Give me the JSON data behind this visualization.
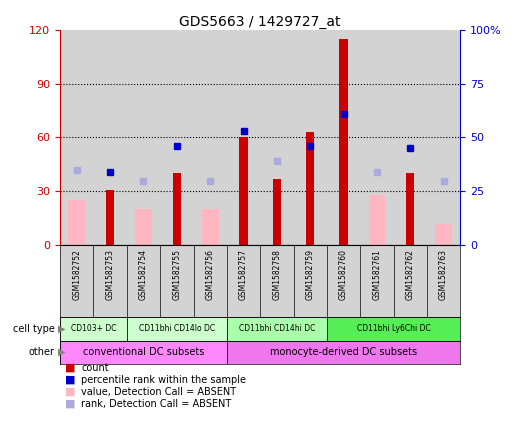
{
  "title": "GDS5663 / 1429727_at",
  "samples": [
    "GSM1582752",
    "GSM1582753",
    "GSM1582754",
    "GSM1582755",
    "GSM1582756",
    "GSM1582757",
    "GSM1582758",
    "GSM1582759",
    "GSM1582760",
    "GSM1582761",
    "GSM1582762",
    "GSM1582763"
  ],
  "count_values": [
    null,
    31,
    null,
    40,
    null,
    60,
    37,
    63,
    115,
    null,
    40,
    null
  ],
  "count_absent": [
    25,
    null,
    20,
    null,
    20,
    null,
    null,
    null,
    null,
    28,
    null,
    12
  ],
  "rank_values": [
    null,
    34,
    null,
    46,
    null,
    53,
    null,
    46,
    61,
    null,
    45,
    null
  ],
  "rank_absent": [
    35,
    null,
    30,
    null,
    30,
    null,
    39,
    null,
    null,
    34,
    null,
    30
  ],
  "ylim_left": [
    0,
    120
  ],
  "ylim_right": [
    0,
    100
  ],
  "yticks_left": [
    0,
    30,
    60,
    90,
    120
  ],
  "ytick_labels_left": [
    "0",
    "30",
    "60",
    "90",
    "120"
  ],
  "yticks_right": [
    0,
    25,
    50,
    75,
    100
  ],
  "ytick_labels_right": [
    "0",
    "25",
    "50",
    "75",
    "100%"
  ],
  "cell_type_groups": [
    {
      "label": "CD103+ DC",
      "start": 0,
      "end": 1,
      "color": "#CCFFCC"
    },
    {
      "label": "CD11bhi CD14lo DC",
      "start": 2,
      "end": 4,
      "color": "#CCFFCC"
    },
    {
      "label": "CD11bhi CD14hi DC",
      "start": 5,
      "end": 7,
      "color": "#AAFFAA"
    },
    {
      "label": "CD11bhi Ly6Chi DC",
      "start": 8,
      "end": 11,
      "color": "#55EE55"
    }
  ],
  "other_groups": [
    {
      "label": "conventional DC subsets",
      "start": 0,
      "end": 5,
      "color": "#FF88FF"
    },
    {
      "label": "monocyte-derived DC subsets",
      "start": 5,
      "end": 11,
      "color": "#FF88FF"
    }
  ],
  "bar_color_red": "#CC0000",
  "bar_color_pink": "#FFB6C1",
  "bar_color_blue": "#0000CC",
  "bar_color_lightblue": "#AAAADD",
  "bg_color": "#D3D3D3",
  "legend_items": [
    {
      "label": "count",
      "color": "#CC0000"
    },
    {
      "label": "percentile rank within the sample",
      "color": "#0000CC"
    },
    {
      "label": "value, Detection Call = ABSENT",
      "color": "#FFB6C1"
    },
    {
      "label": "rank, Detection Call = ABSENT",
      "color": "#AAAADD"
    }
  ]
}
